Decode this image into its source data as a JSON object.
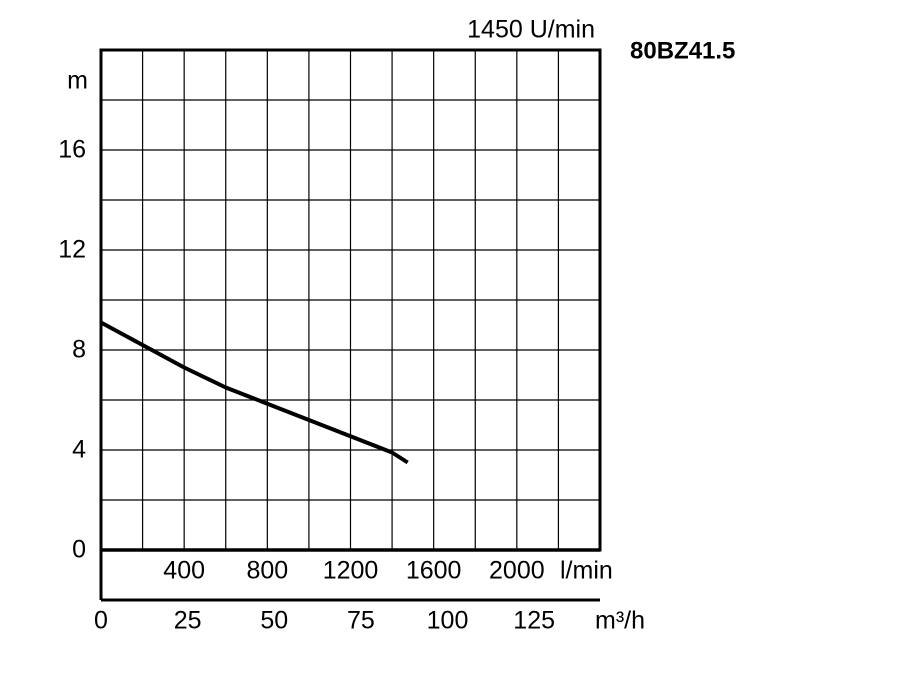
{
  "chart_data": {
    "type": "line",
    "title": "80BZ41.5",
    "subtitle": "1450 U/min",
    "y_label": "m",
    "x_label": "l/min",
    "x2_label": "m³/h",
    "x": [
      0,
      200,
      400,
      600,
      800,
      1000,
      1200,
      1400,
      1475
    ],
    "series": [
      {
        "color": "#000000",
        "values": [
          9.1,
          8.2,
          7.3,
          6.5,
          5.85,
          5.2,
          4.55,
          3.9,
          3.5
        ]
      }
    ],
    "xlim": [
      0,
      2400
    ],
    "xticks": [
      400,
      800,
      1200,
      1600,
      2000
    ],
    "x2lim": [
      0,
      144
    ],
    "x2ticks": [
      0,
      25,
      50,
      75,
      100,
      125
    ],
    "ylim": [
      0,
      20
    ],
    "yticks": [
      0,
      4,
      8,
      12,
      16
    ],
    "grid": true,
    "grid_x_step": 200,
    "grid_y_step": 2
  }
}
